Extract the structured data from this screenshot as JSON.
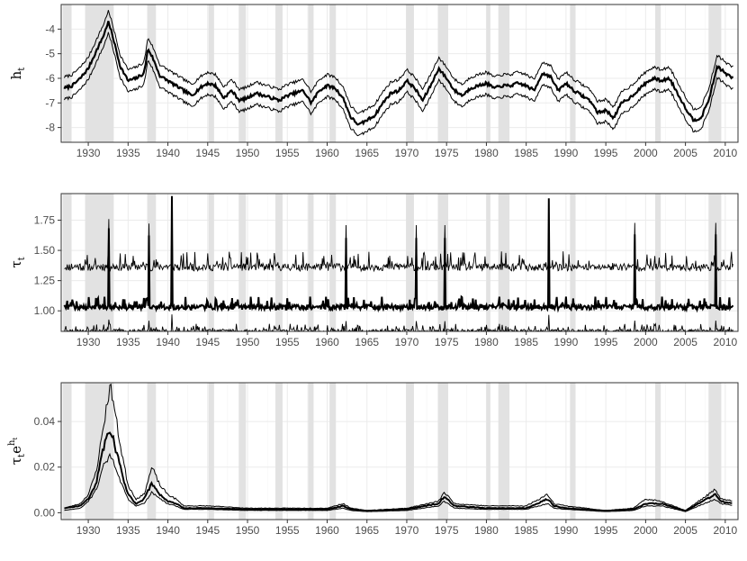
{
  "chart_data": [
    {
      "type": "line",
      "title": "",
      "ylabel": "h_t",
      "ylabel_base": "h",
      "ylabel_sub": "t",
      "ylim": [
        -8.6,
        -3.0
      ],
      "xlim": [
        1926.6,
        2011.6
      ],
      "x_ticks": [
        "1930",
        "1935",
        "1940",
        "1945",
        "1950",
        "1955",
        "1960",
        "1965",
        "1970",
        "1975",
        "1980",
        "1985",
        "1990",
        "1995",
        "2000",
        "2005",
        "2010"
      ],
      "y_ticks": [
        "-4",
        "-5",
        "-6",
        "-7",
        "-8"
      ],
      "y_tick_values": [
        -4,
        -5,
        -6,
        -7,
        -8
      ],
      "grid": true,
      "band_half_width": 0.45,
      "series": [
        {
          "role": "posterior-median",
          "x": [
            1927,
            1928,
            1929,
            1930,
            1931,
            1932,
            1932.5,
            1933,
            1934,
            1935,
            1936,
            1937,
            1937.5,
            1938,
            1939,
            1940,
            1941,
            1942,
            1943,
            1944,
            1945,
            1946,
            1947,
            1948,
            1949,
            1950,
            1951,
            1952,
            1953,
            1954,
            1955,
            1956,
            1957,
            1958,
            1959,
            1960,
            1961,
            1962,
            1963,
            1964,
            1965,
            1966,
            1967,
            1968,
            1969,
            1970,
            1971,
            1972,
            1973,
            1974,
            1975,
            1976,
            1977,
            1978,
            1979,
            1980,
            1981,
            1982,
            1983,
            1984,
            1985,
            1986,
            1987,
            1988,
            1989,
            1990,
            1991,
            1992,
            1993,
            1994,
            1995,
            1996,
            1997,
            1998,
            1999,
            2000,
            2001,
            2002,
            2003,
            2004,
            2005,
            2006,
            2007,
            2008,
            2009,
            2010,
            2011
          ],
          "values": [
            -6.4,
            -6.3,
            -6.0,
            -5.6,
            -4.9,
            -4.2,
            -3.7,
            -4.2,
            -5.5,
            -6.1,
            -6.0,
            -5.8,
            -4.8,
            -5.1,
            -5.9,
            -6.1,
            -6.3,
            -6.5,
            -6.7,
            -6.4,
            -6.2,
            -6.3,
            -6.8,
            -6.5,
            -6.9,
            -6.8,
            -6.6,
            -6.7,
            -6.8,
            -6.9,
            -6.7,
            -6.6,
            -6.5,
            -7.0,
            -6.5,
            -6.3,
            -6.4,
            -6.8,
            -7.6,
            -7.9,
            -7.7,
            -7.5,
            -7.0,
            -6.6,
            -6.5,
            -6.1,
            -6.4,
            -6.9,
            -6.3,
            -5.6,
            -6.0,
            -6.5,
            -6.7,
            -6.4,
            -6.3,
            -6.2,
            -6.4,
            -6.3,
            -6.3,
            -6.2,
            -6.3,
            -6.5,
            -5.8,
            -5.9,
            -6.5,
            -6.2,
            -6.5,
            -6.7,
            -6.9,
            -7.4,
            -7.3,
            -7.6,
            -7.0,
            -6.8,
            -6.5,
            -6.2,
            -6.0,
            -6.1,
            -6.0,
            -6.6,
            -7.2,
            -7.7,
            -7.6,
            -6.8,
            -5.5,
            -5.8,
            -6.0
          ]
        }
      ]
    },
    {
      "type": "line",
      "title": "",
      "ylabel": "τ_t",
      "ylabel_base": "τ",
      "ylabel_sub": "t",
      "ylim": [
        0.83,
        1.97
      ],
      "xlim": [
        1926.6,
        2011.6
      ],
      "x_ticks": [
        "1930",
        "1935",
        "1940",
        "1945",
        "1950",
        "1955",
        "1960",
        "1965",
        "1970",
        "1975",
        "1980",
        "1985",
        "1990",
        "1995",
        "2000",
        "2005",
        "2010"
      ],
      "y_ticks": [
        "1.75",
        "1.50",
        "1.25",
        "1.00"
      ],
      "y_tick_values": [
        1.75,
        1.5,
        1.25,
        1.0
      ],
      "grid": true,
      "series": [
        {
          "role": "upper-band",
          "base": 1.33,
          "amplitude": 0.18
        },
        {
          "role": "posterior-median",
          "base": 1.01,
          "amplitude": 0.12
        },
        {
          "role": "lower-band",
          "base": 0.82,
          "amplitude": 0.08
        }
      ],
      "spikes": [
        {
          "x": 1940.5,
          "value": 1.95
        },
        {
          "x": 1987.8,
          "value": 1.93
        },
        {
          "x": 1932.6,
          "value": 1.68
        },
        {
          "x": 1937.6,
          "value": 1.62
        },
        {
          "x": 2008.8,
          "value": 1.63
        },
        {
          "x": 1998.6,
          "value": 1.63
        },
        {
          "x": 1962.4,
          "value": 1.6
        },
        {
          "x": 1974.8,
          "value": 1.6
        },
        {
          "x": 1971.2,
          "value": 1.6
        }
      ]
    },
    {
      "type": "line",
      "title": "",
      "ylabel": "τ_t e^{h_t}",
      "ylabel_base": "τ",
      "ylabel_sub": "t",
      "ylabel_mid": "e",
      "ylabel_sup": "h",
      "ylabel_supsub": "t",
      "ylim": [
        -0.003,
        0.057
      ],
      "xlim": [
        1926.6,
        2011.6
      ],
      "x_ticks": [
        "1930",
        "1935",
        "1940",
        "1945",
        "1950",
        "1955",
        "1960",
        "1965",
        "1970",
        "1975",
        "1980",
        "1985",
        "1990",
        "1995",
        "2000",
        "2005",
        "2010"
      ],
      "y_ticks": [
        "0.04",
        "0.02",
        "0.00"
      ],
      "y_tick_values": [
        0.04,
        0.02,
        0.0
      ],
      "grid": true,
      "series": [
        {
          "role": "upper-band",
          "x": [
            1927,
            1929,
            1930,
            1931,
            1932,
            1932.7,
            1933,
            1934,
            1935,
            1936,
            1937,
            1938,
            1939,
            1940,
            1941,
            1942,
            1945,
            1950,
            1960,
            1962,
            1963,
            1965,
            1970,
            1974,
            1974.7,
            1976,
            1980,
            1985,
            1987.7,
            1988.5,
            1990,
            1995,
            1998.5,
            2000,
            2002,
            2005,
            2008.7,
            2009.5,
            2011
          ],
          "values": [
            0.002,
            0.004,
            0.008,
            0.018,
            0.04,
            0.055,
            0.052,
            0.03,
            0.012,
            0.006,
            0.008,
            0.02,
            0.012,
            0.008,
            0.006,
            0.003,
            0.003,
            0.002,
            0.002,
            0.004,
            0.002,
            0.001,
            0.002,
            0.005,
            0.009,
            0.004,
            0.003,
            0.003,
            0.008,
            0.004,
            0.003,
            0.001,
            0.002,
            0.006,
            0.005,
            0.001,
            0.01,
            0.006,
            0.005
          ]
        },
        {
          "role": "posterior-median",
          "x": [
            1927,
            1929,
            1930,
            1931,
            1932,
            1932.7,
            1933,
            1934,
            1935,
            1936,
            1937,
            1938,
            1939,
            1940,
            1941,
            1942,
            1945,
            1950,
            1960,
            1962,
            1963,
            1965,
            1970,
            1974,
            1974.7,
            1976,
            1980,
            1985,
            1987.7,
            1988.5,
            1990,
            1995,
            1998.5,
            2000,
            2002,
            2005,
            2008.7,
            2009.5,
            2011
          ],
          "values": [
            0.002,
            0.003,
            0.006,
            0.013,
            0.03,
            0.036,
            0.034,
            0.02,
            0.008,
            0.004,
            0.006,
            0.013,
            0.008,
            0.005,
            0.004,
            0.002,
            0.002,
            0.0015,
            0.0015,
            0.003,
            0.0015,
            0.0008,
            0.0015,
            0.004,
            0.007,
            0.003,
            0.002,
            0.002,
            0.006,
            0.003,
            0.002,
            0.0008,
            0.0015,
            0.004,
            0.004,
            0.0008,
            0.008,
            0.005,
            0.004
          ]
        },
        {
          "role": "lower-band",
          "x": [
            1927,
            1929,
            1930,
            1931,
            1932,
            1932.7,
            1933,
            1934,
            1935,
            1936,
            1937,
            1938,
            1939,
            1940,
            1941,
            1942,
            1945,
            1950,
            1960,
            1962,
            1963,
            1965,
            1970,
            1974,
            1974.7,
            1976,
            1980,
            1985,
            1987.7,
            1988.5,
            1990,
            1995,
            1998.5,
            2000,
            2002,
            2005,
            2008.7,
            2009.5,
            2011
          ],
          "values": [
            0.001,
            0.002,
            0.005,
            0.01,
            0.022,
            0.025,
            0.024,
            0.014,
            0.006,
            0.003,
            0.004,
            0.009,
            0.006,
            0.004,
            0.003,
            0.0015,
            0.0015,
            0.001,
            0.001,
            0.002,
            0.001,
            0.0005,
            0.001,
            0.003,
            0.005,
            0.002,
            0.0015,
            0.0015,
            0.004,
            0.002,
            0.0015,
            0.0005,
            0.001,
            0.003,
            0.003,
            0.0005,
            0.006,
            0.004,
            0.003
          ]
        }
      ]
    }
  ],
  "recession_shading": [
    [
      1926.8,
      1927.9
    ],
    [
      1929.6,
      1933.2
    ],
    [
      1937.4,
      1938.5
    ],
    [
      1945.1,
      1945.8
    ],
    [
      1948.9,
      1949.8
    ],
    [
      1953.5,
      1954.4
    ],
    [
      1957.6,
      1958.3
    ],
    [
      1960.3,
      1961.1
    ],
    [
      1969.9,
      1970.9
    ],
    [
      1973.9,
      1975.2
    ],
    [
      1980.0,
      1980.5
    ],
    [
      1981.5,
      1982.9
    ],
    [
      1990.5,
      1991.2
    ],
    [
      2001.2,
      2001.9
    ],
    [
      2007.9,
      2009.5
    ]
  ],
  "colors": {
    "line": "#000000",
    "shade": "#e2e2e2",
    "grid": "#ebebeb",
    "border": "#333333"
  }
}
